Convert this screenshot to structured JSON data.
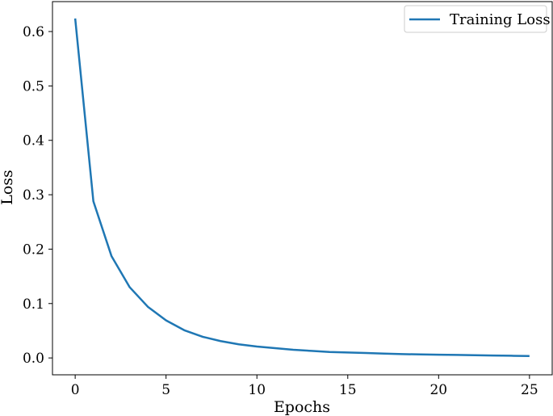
{
  "chart_data": {
    "type": "line",
    "title": "",
    "xlabel": "Epochs",
    "ylabel": "Loss",
    "xlim": [
      -1.25,
      26.25
    ],
    "ylim": [
      -0.031,
      0.655
    ],
    "xticks": [
      0,
      5,
      10,
      15,
      20,
      25
    ],
    "yticks": [
      0.0,
      0.1,
      0.2,
      0.3,
      0.4,
      0.5,
      0.6
    ],
    "grid": false,
    "legend": {
      "placement": "top-right"
    },
    "series": [
      {
        "name": "Training Loss",
        "color": "#1f77b4",
        "x": [
          0,
          1,
          2,
          3,
          4,
          5,
          6,
          7,
          8,
          9,
          10,
          11,
          12,
          13,
          14,
          15,
          16,
          17,
          18,
          19,
          20,
          21,
          22,
          23,
          24,
          25
        ],
        "values": [
          0.624,
          0.288,
          0.187,
          0.13,
          0.094,
          0.069,
          0.051,
          0.039,
          0.031,
          0.025,
          0.021,
          0.018,
          0.015,
          0.013,
          0.011,
          0.01,
          0.009,
          0.008,
          0.007,
          0.0065,
          0.006,
          0.0055,
          0.005,
          0.0045,
          0.004,
          0.0035
        ]
      }
    ]
  }
}
